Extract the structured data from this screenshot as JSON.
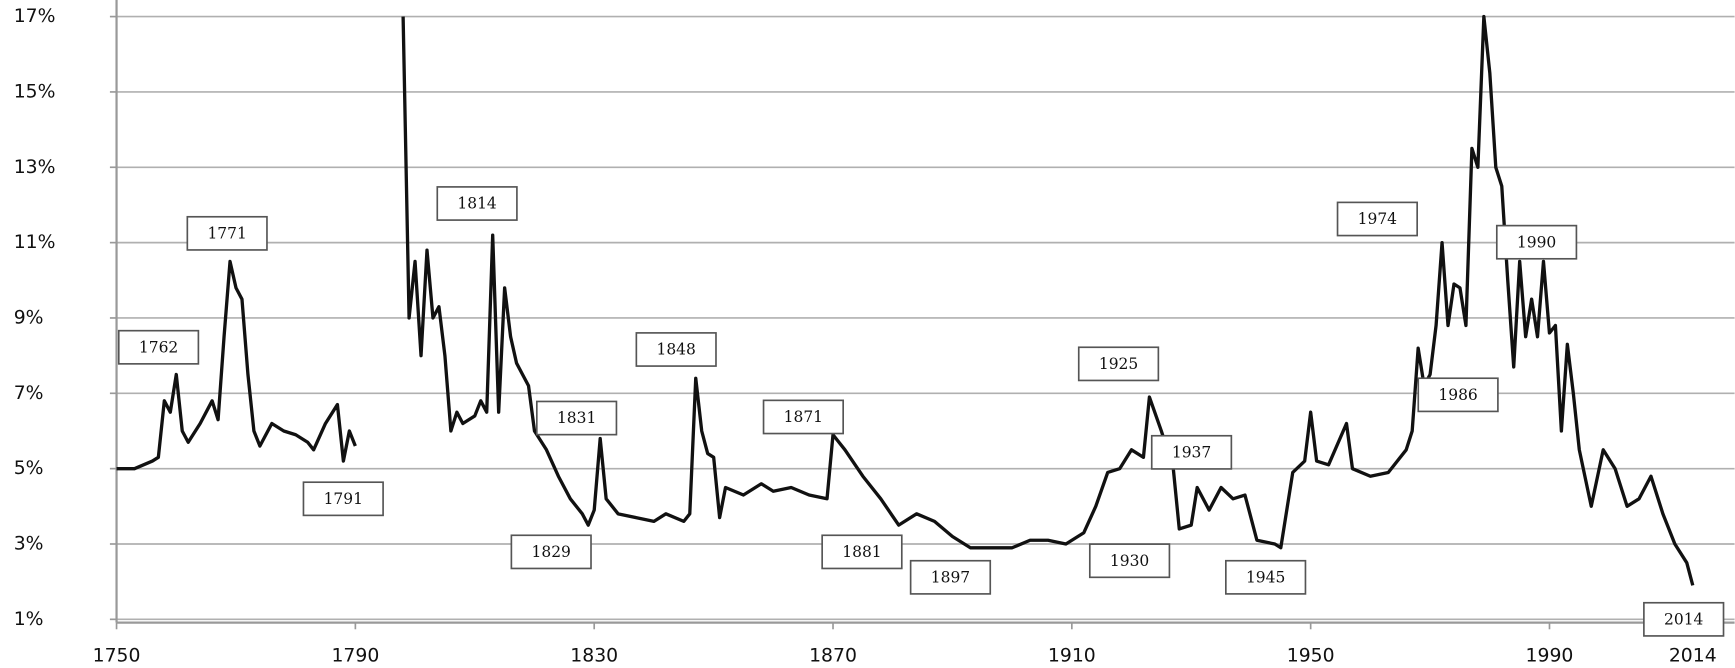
{
  "chart_data": {
    "type": "line",
    "x": [
      1750,
      1753,
      1756,
      1757,
      1758,
      1759,
      1760,
      1761,
      1762,
      1764,
      1766,
      1767,
      1768,
      1769,
      1770,
      1771,
      1772,
      1773,
      1774,
      1776,
      1778,
      1780,
      1782,
      1783,
      1785,
      1787,
      1788,
      1789,
      1790,
      1794,
      1798,
      1799,
      1800,
      1801,
      1802,
      1803,
      1804,
      1805,
      1806,
      1807,
      1808,
      1810,
      1811,
      1812,
      1813,
      1814,
      1815,
      1816,
      1817,
      1818,
      1819,
      1820,
      1822,
      1824,
      1826,
      1828,
      1829,
      1830,
      1831,
      1832,
      1834,
      1837,
      1840,
      1842,
      1845,
      1846,
      1847,
      1848,
      1849,
      1850,
      1851,
      1852,
      1855,
      1858,
      1860,
      1863,
      1866,
      1869,
      1870,
      1872,
      1875,
      1878,
      1881,
      1884,
      1887,
      1890,
      1893,
      1897,
      1900,
      1903,
      1906,
      1909,
      1912,
      1914,
      1916,
      1918,
      1920,
      1922,
      1923,
      1925,
      1927,
      1928,
      1930,
      1931,
      1933,
      1935,
      1937,
      1939,
      1941,
      1944,
      1945,
      1947,
      1949,
      1950,
      1951,
      1953,
      1956,
      1957,
      1960,
      1963,
      1966,
      1967,
      1968,
      1969,
      1970,
      1971,
      1972,
      1973,
      1974,
      1975,
      1976,
      1977,
      1978,
      1979,
      1980,
      1981,
      1982,
      1983,
      1984,
      1985,
      1986,
      1987,
      1988,
      1989,
      1990,
      1991,
      1992,
      1993,
      1994,
      1995,
      1997,
      1999,
      2001,
      2003,
      2005,
      2007,
      2009,
      2011,
      2013,
      2014
    ],
    "series": [
      {
        "color": "#111111",
        "values": [
          5.0,
          5.0,
          5.2,
          5.3,
          6.8,
          6.5,
          7.5,
          6.0,
          5.7,
          6.2,
          6.8,
          6.3,
          8.5,
          10.5,
          9.8,
          9.5,
          7.5,
          6.0,
          5.6,
          6.2,
          6.0,
          5.9,
          5.7,
          5.5,
          6.2,
          6.7,
          5.2,
          6.0,
          5.6,
          null,
          17.0,
          9.0,
          10.5,
          8.0,
          10.8,
          9.0,
          9.3,
          8.0,
          6.0,
          6.5,
          6.2,
          6.4,
          6.8,
          6.5,
          11.2,
          6.5,
          9.8,
          8.5,
          7.8,
          7.5,
          7.2,
          6.0,
          5.5,
          4.8,
          4.2,
          3.8,
          3.5,
          3.9,
          5.8,
          4.2,
          3.8,
          3.7,
          3.6,
          3.8,
          3.6,
          3.8,
          7.4,
          6.0,
          5.4,
          5.3,
          3.7,
          4.5,
          4.3,
          4.6,
          4.4,
          4.5,
          4.3,
          4.2,
          5.9,
          5.5,
          4.8,
          4.2,
          3.5,
          3.8,
          3.6,
          3.2,
          2.9,
          2.9,
          2.9,
          3.1,
          3.1,
          3.0,
          3.3,
          4.0,
          4.9,
          5.0,
          5.5,
          5.3,
          6.9,
          6.0,
          5.0,
          3.4,
          3.5,
          4.5,
          3.9,
          4.5,
          4.2,
          4.3,
          3.1,
          3.0,
          2.9,
          4.9,
          5.2,
          6.5,
          5.2,
          5.1,
          6.2,
          5.0,
          4.8,
          4.9,
          5.5,
          6.0,
          8.2,
          7.2,
          7.5,
          8.8,
          11.0,
          8.8,
          9.9,
          9.8,
          8.8,
          13.5,
          13.0,
          17.0,
          15.5,
          13.0,
          12.5,
          10.0,
          7.7,
          10.5,
          8.5,
          9.5,
          8.5,
          10.5,
          8.6,
          8.8,
          6.0,
          8.3,
          7.0,
          5.5,
          4.0,
          5.5,
          5.0,
          4.0,
          4.2,
          4.8,
          3.8,
          3.0,
          2.5,
          1.9
        ]
      }
    ],
    "xlim": [
      1750,
      2021
    ],
    "xticks": [
      1750,
      1790,
      1830,
      1870,
      1910,
      1950,
      1990,
      2014
    ],
    "ylim": [
      1,
      17
    ],
    "yticks": [
      {
        "value": 1,
        "label": "1%"
      },
      {
        "value": 3,
        "label": "3%"
      },
      {
        "value": 5,
        "label": "5%"
      },
      {
        "value": 7,
        "label": "7%"
      },
      {
        "value": 9,
        "label": "9%"
      },
      {
        "value": 11,
        "label": "11%"
      },
      {
        "value": 13,
        "label": "13%"
      },
      {
        "value": 15,
        "label": "15%"
      },
      {
        "value": 17,
        "label": "17%"
      }
    ],
    "grid": true,
    "annotations": [
      "1762",
      "1771",
      "1791",
      "1814",
      "1831",
      "1829",
      "1848",
      "1871",
      "1881",
      "1897",
      "1925",
      "1930",
      "1937",
      "1945",
      "1974",
      "1990",
      "1986",
      "2014"
    ]
  }
}
